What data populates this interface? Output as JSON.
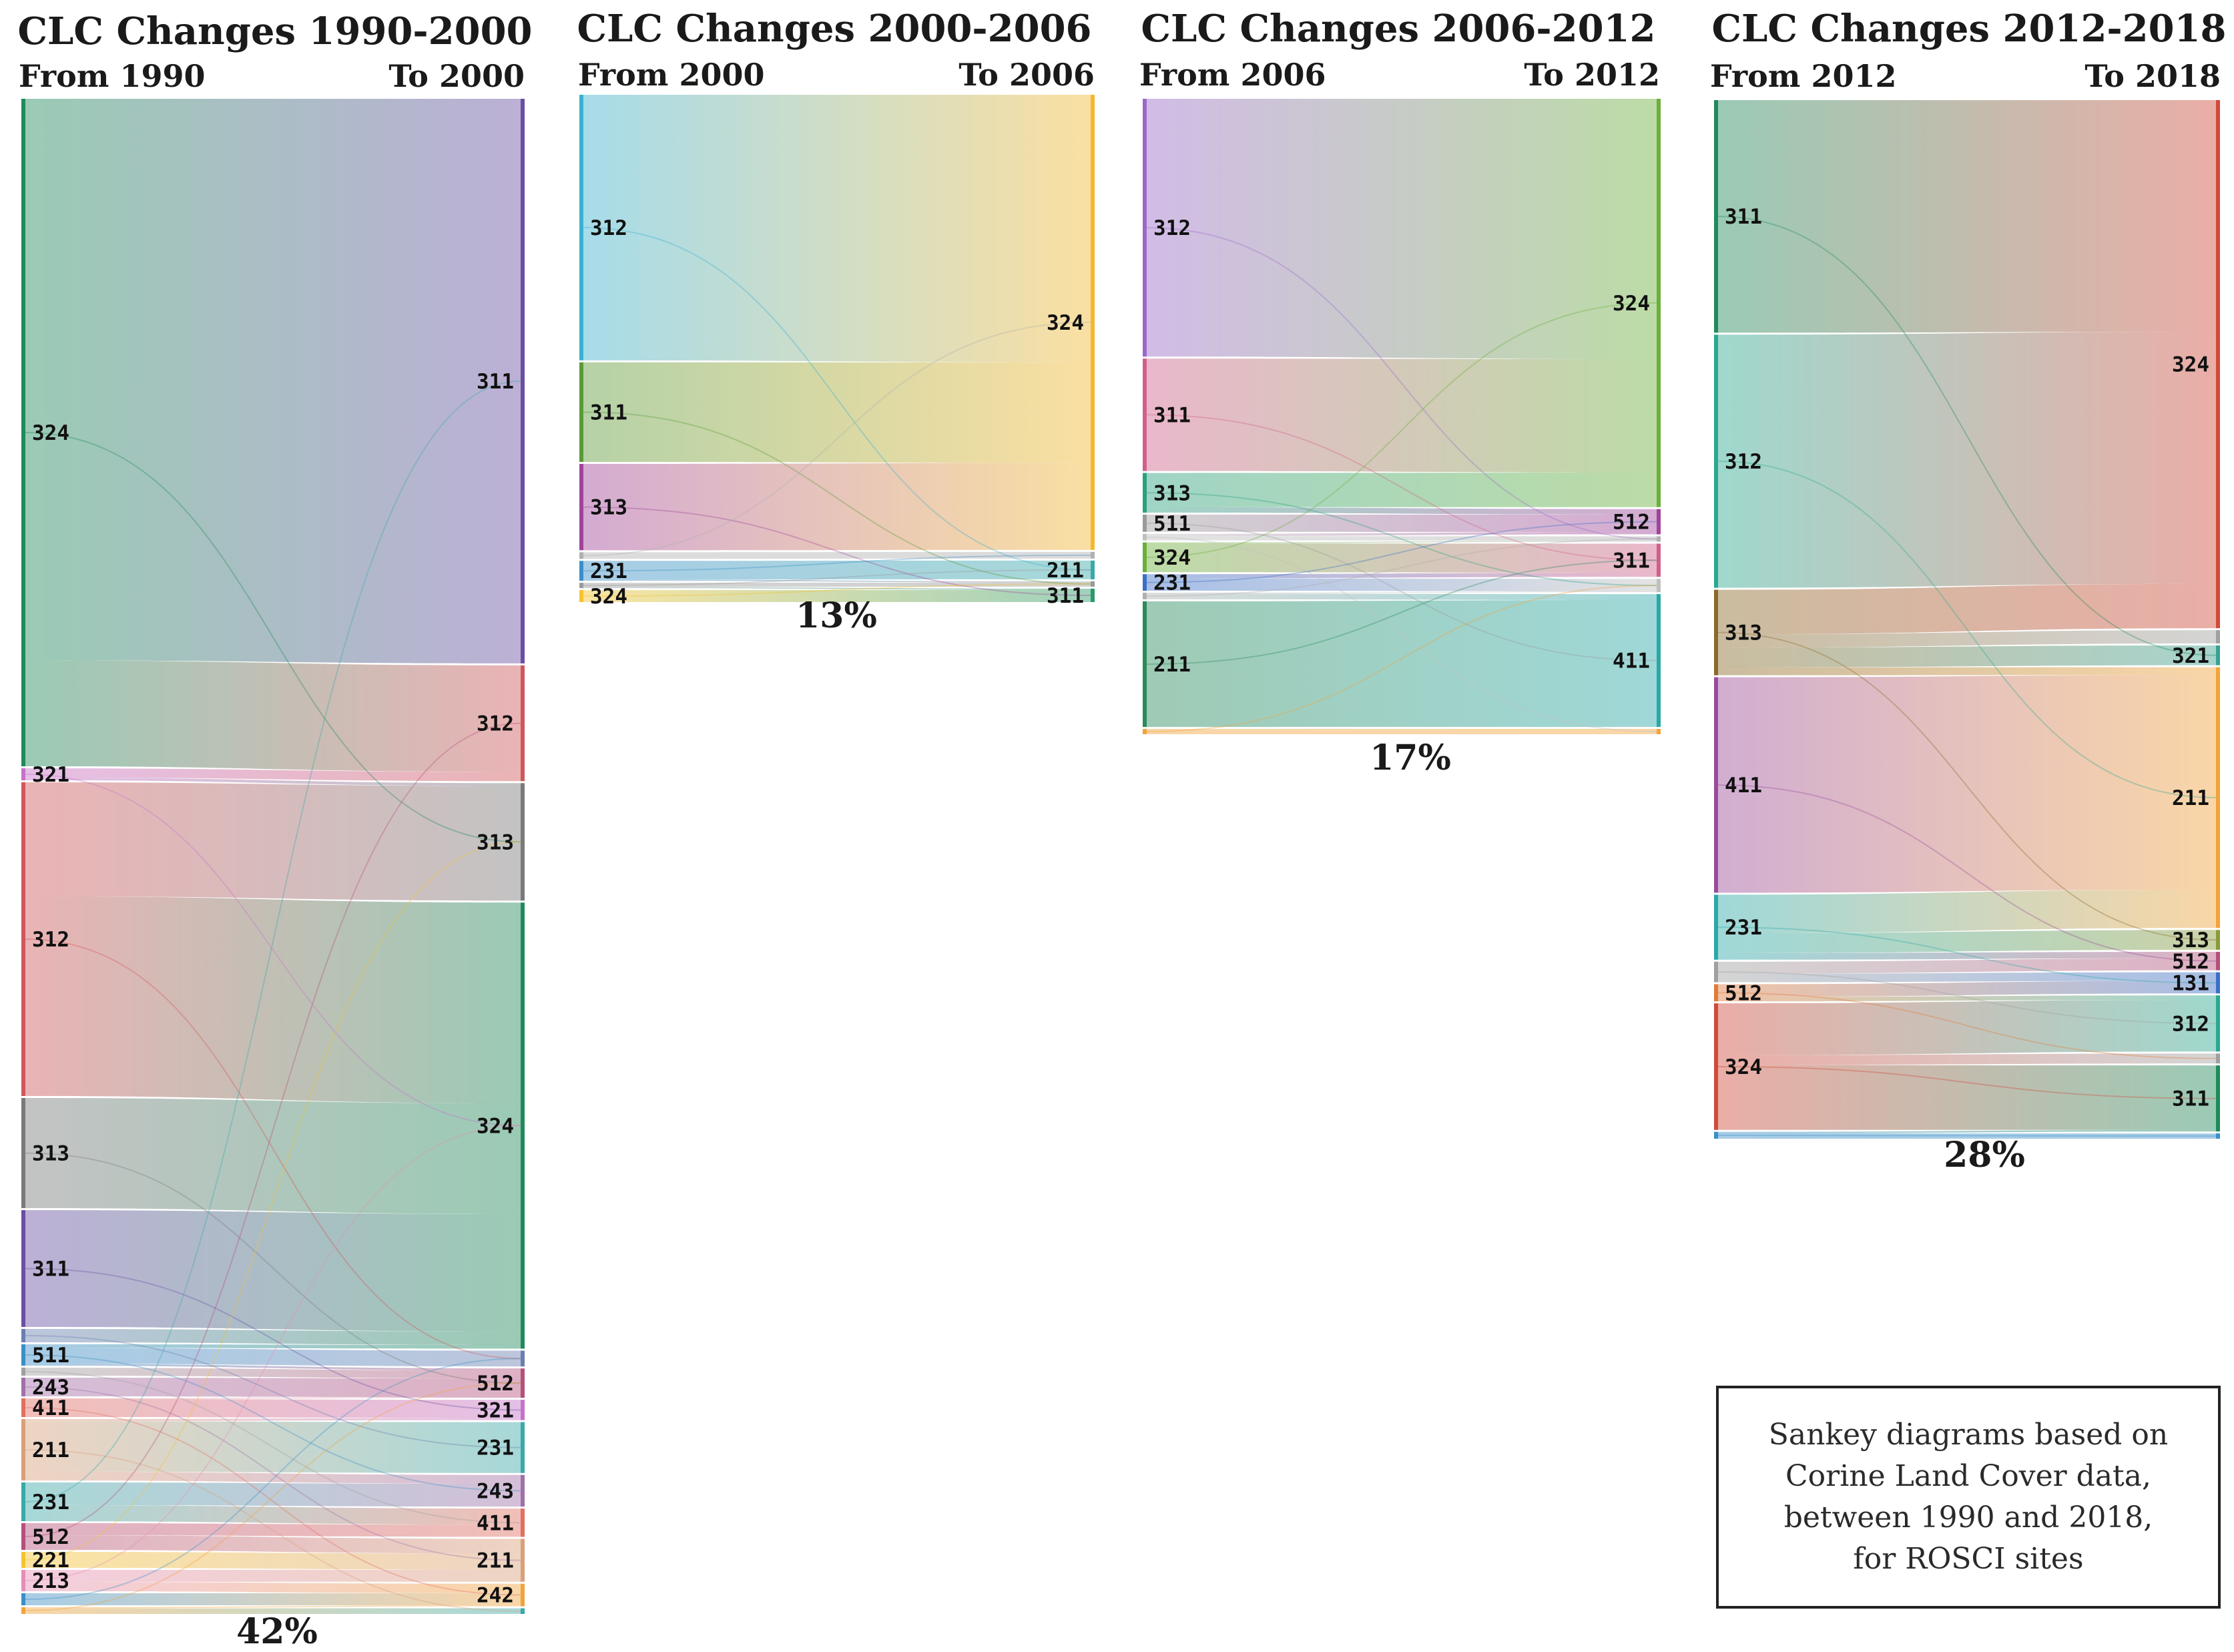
{
  "colors": {
    "111": "#7f7f7f",
    "131": "#4a72b8",
    "211": "#e8a24a",
    "213": "#e58fb5",
    "221": "#f4c430",
    "231": "#3aa9a8",
    "242": "#f2a33b",
    "243": "#a070a8",
    "311": "#6a4fa3",
    "312": "#d0575a",
    "313": "#7a7a7a",
    "321": "#c572c8",
    "324": "#1f8a5a",
    "411": "#e07060",
    "511": "#3b8fc7",
    "512": "#b5507a"
  },
  "diagrams": [
    {
      "title": "CLC Changes 1990-2000",
      "from_label": "From 1990",
      "to_label": "To 2000",
      "percent": "42%",
      "source": [
        {
          "code": "324",
          "value": 1000,
          "color": "#1f8a5a"
        },
        {
          "code": "321",
          "value": 18,
          "color": "#c572c8"
        },
        {
          "code": "312",
          "value": 470,
          "color": "#d0575a"
        },
        {
          "code": "313",
          "value": 165,
          "color": "#7a7a7a"
        },
        {
          "code": "311",
          "value": 175,
          "color": "#6a4fa3"
        },
        {
          "code": "",
          "value": 20,
          "color": "#6a7fb0"
        },
        {
          "code": "511",
          "value": 32,
          "color": "#3b8fc7"
        },
        {
          "code": "",
          "value": 12,
          "color": "#a0a0a0"
        },
        {
          "code": "243",
          "value": 28,
          "color": "#a070a8"
        },
        {
          "code": "411",
          "value": 28,
          "color": "#e07060"
        },
        {
          "code": "211",
          "value": 92,
          "color": "#d9a07a"
        },
        {
          "code": "231",
          "value": 58,
          "color": "#3aa9a8"
        },
        {
          "code": "512",
          "value": 40,
          "color": "#b5507a"
        },
        {
          "code": "221",
          "value": 24,
          "color": "#f4c430"
        },
        {
          "code": "213",
          "value": 32,
          "color": "#e58fb5"
        },
        {
          "code": "",
          "value": 18,
          "color": "#3b8fc7"
        },
        {
          "code": "",
          "value": 10,
          "color": "#f2a33b"
        }
      ],
      "target": [
        {
          "code": "311",
          "value": 1000,
          "color": "#6a4fa3"
        },
        {
          "code": "312",
          "value": 205,
          "color": "#d0575a"
        },
        {
          "code": "313",
          "value": 208,
          "color": "#7a7a7a"
        },
        {
          "code": "324",
          "value": 790,
          "color": "#1f8a5a"
        },
        {
          "code": "",
          "value": 28,
          "color": "#6a7fb0"
        },
        {
          "code": "512",
          "value": 52,
          "color": "#b5507a"
        },
        {
          "code": "321",
          "value": 36,
          "color": "#c572c8"
        },
        {
          "code": "231",
          "value": 90,
          "color": "#3aa9a8"
        },
        {
          "code": "243",
          "value": 56,
          "color": "#a070a8"
        },
        {
          "code": "411",
          "value": 50,
          "color": "#e07060"
        },
        {
          "code": "211",
          "value": 76,
          "color": "#d9a07a"
        },
        {
          "code": "242",
          "value": 40,
          "color": "#f2a33b"
        },
        {
          "code": "",
          "value": 10,
          "color": "#3aa9a8"
        }
      ]
    },
    {
      "title": "CLC Changes 2000-2006",
      "from_label": "From 2000",
      "to_label": "To 2006",
      "percent": "13%",
      "source": [
        {
          "code": "312",
          "value": 400,
          "color": "#3ab0d0"
        },
        {
          "code": "311",
          "value": 150,
          "color": "#5a9a3a"
        },
        {
          "code": "313",
          "value": 130,
          "color": "#a0449a"
        },
        {
          "code": "",
          "value": 10,
          "color": "#b0b0b0"
        },
        {
          "code": "231",
          "value": 30,
          "color": "#3b8fc7"
        },
        {
          "code": "",
          "value": 8,
          "color": "#9a9a9a"
        },
        {
          "code": "324",
          "value": 18,
          "color": "#f4c430"
        }
      ],
      "target": [
        {
          "code": "324",
          "value": 680,
          "color": "#f4b830"
        },
        {
          "code": "",
          "value": 10,
          "color": "#b0b0b0"
        },
        {
          "code": "211",
          "value": 28,
          "color": "#3aa9a8"
        },
        {
          "code": "",
          "value": 8,
          "color": "#9a9a9a"
        },
        {
          "code": "311",
          "value": 20,
          "color": "#2a9a6a"
        }
      ]
    },
    {
      "title": "CLC Changes 2006-2012",
      "from_label": "From 2006",
      "to_label": "To 2012",
      "percent": "17%",
      "source": [
        {
          "code": "312",
          "value": 390,
          "color": "#9a6ac8"
        },
        {
          "code": "311",
          "value": 170,
          "color": "#d0608a"
        },
        {
          "code": "313",
          "value": 60,
          "color": "#2aa080"
        },
        {
          "code": "511",
          "value": 26,
          "color": "#9a9a9a"
        },
        {
          "code": "",
          "value": 10,
          "color": "#c0c0c0"
        },
        {
          "code": "324",
          "value": 45,
          "color": "#6ab03a"
        },
        {
          "code": "231",
          "value": 25,
          "color": "#3b6fc7"
        },
        {
          "code": "",
          "value": 10,
          "color": "#b0b0b0"
        },
        {
          "code": "211",
          "value": 190,
          "color": "#2a8a5a"
        },
        {
          "code": "",
          "value": 8,
          "color": "#f2a33b"
        }
      ],
      "target": [
        {
          "code": "324",
          "value": 615,
          "color": "#6ab03a"
        },
        {
          "code": "512",
          "value": 38,
          "color": "#a0449a"
        },
        {
          "code": "",
          "value": 8,
          "color": "#b0b0b0"
        },
        {
          "code": "311",
          "value": 50,
          "color": "#d0608a"
        },
        {
          "code": "",
          "value": 20,
          "color": "#c0c0c0"
        },
        {
          "code": "411",
          "value": 200,
          "color": "#2aa8a8"
        },
        {
          "code": "",
          "value": 8,
          "color": "#f2a33b"
        }
      ]
    },
    {
      "title": "CLC Changes 2012-2018",
      "from_label": "From 2012",
      "to_label": "To 2018",
      "percent": "28%",
      "source": [
        {
          "code": "311",
          "value": 340,
          "color": "#1f8a5a"
        },
        {
          "code": "312",
          "value": 370,
          "color": "#2aa890"
        },
        {
          "code": "313",
          "value": 125,
          "color": "#8a6a2a"
        },
        {
          "code": "411",
          "value": 315,
          "color": "#9a4a9a"
        },
        {
          "code": "231",
          "value": 95,
          "color": "#2aa8a8"
        },
        {
          "code": "",
          "value": 30,
          "color": "#a0a0a0"
        },
        {
          "code": "512",
          "value": 25,
          "color": "#e07a3a"
        },
        {
          "code": "324",
          "value": 185,
          "color": "#d04a3a"
        },
        {
          "code": "",
          "value": 10,
          "color": "#3b8fc7"
        }
      ],
      "target": [
        {
          "code": "324",
          "value": 800,
          "color": "#d04a3a"
        },
        {
          "code": "",
          "value": 20,
          "color": "#a0a0a0"
        },
        {
          "code": "321",
          "value": 30,
          "color": "#3aa090"
        },
        {
          "code": "211",
          "value": 395,
          "color": "#f2a33b"
        },
        {
          "code": "313",
          "value": 30,
          "color": "#8a9a3a"
        },
        {
          "code": "512",
          "value": 28,
          "color": "#b5507a"
        },
        {
          "code": "131",
          "value": 32,
          "color": "#3b6fc7"
        },
        {
          "code": "312",
          "value": 85,
          "color": "#2aa890"
        },
        {
          "code": "",
          "value": 15,
          "color": "#a0a0a0"
        },
        {
          "code": "311",
          "value": 100,
          "color": "#1f8a5a"
        },
        {
          "code": "",
          "value": 8,
          "color": "#3b8fc7"
        }
      ]
    }
  ],
  "legend": {
    "lines": [
      "Sankey diagrams based on",
      "Corine Land Cover data,",
      "between 1990 and 2018,",
      "for ROSCI sites"
    ]
  }
}
